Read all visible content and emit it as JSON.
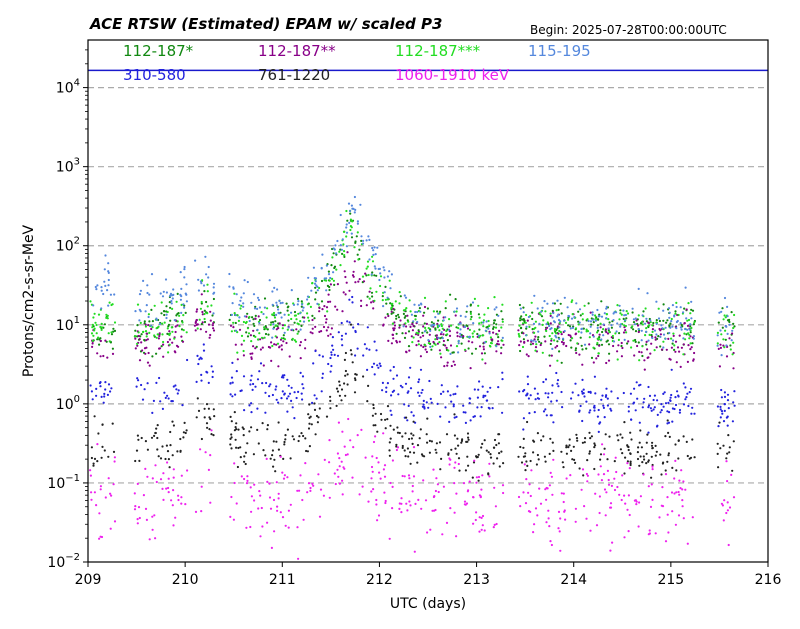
{
  "chart_data": {
    "type": "scatter",
    "title": "ACE RTSW (Estimated) EPAM w/ scaled P3",
    "begin_label": "Begin: 2025-07-28T00:00:00UTC",
    "xlabel": "UTC (days)",
    "ylabel": "Protons/cm2-s-sr-MeV",
    "xlim": [
      209,
      216
    ],
    "ylim": [
      0.01,
      40000
    ],
    "yscale": "log",
    "x_ticks": [
      "209",
      "210",
      "211",
      "212",
      "213",
      "214",
      "215",
      "216"
    ],
    "y_ticks": [
      {
        "base": "10",
        "exp": "−2",
        "value": 0.01
      },
      {
        "base": "10",
        "exp": "−1",
        "value": 0.1
      },
      {
        "base": "10",
        "exp": "0",
        "value": 1
      },
      {
        "base": "10",
        "exp": "1",
        "value": 10
      },
      {
        "base": "10",
        "exp": "2",
        "value": 100
      },
      {
        "base": "10",
        "exp": "3",
        "value": 1000
      },
      {
        "base": "10",
        "exp": "4",
        "value": 10000
      }
    ],
    "grid": "horizontal dashed at each decade",
    "reference_line": {
      "value": 16500,
      "color": "#1a1acc"
    },
    "data_gaps": [
      [
        209.28,
        209.48
      ],
      [
        210.02,
        210.1
      ],
      [
        210.3,
        210.45
      ],
      [
        213.28,
        213.43
      ],
      [
        215.25,
        215.48
      ]
    ],
    "data_end": 215.66,
    "series": [
      {
        "name": "112-187*",
        "color": "#118811",
        "baseline": 9.5,
        "points": [
          [
            209.05,
            10.2
          ],
          [
            209.15,
            9.1
          ],
          [
            209.6,
            8.7
          ],
          [
            209.85,
            10.5
          ],
          [
            210.2,
            18
          ],
          [
            210.6,
            9.2
          ],
          [
            210.9,
            8.8
          ],
          [
            211.2,
            12
          ],
          [
            211.5,
            40
          ],
          [
            211.65,
            120
          ],
          [
            211.72,
            150
          ],
          [
            211.85,
            60
          ],
          [
            212.0,
            25
          ],
          [
            212.2,
            13
          ],
          [
            212.6,
            9
          ],
          [
            213.0,
            8.8
          ],
          [
            213.7,
            9.5
          ],
          [
            214.2,
            9.3
          ],
          [
            214.7,
            8.9
          ],
          [
            215.1,
            10.5
          ],
          [
            215.55,
            8.5
          ]
        ]
      },
      {
        "name": "112-187**",
        "color": "#880088",
        "baseline": 6,
        "points": [
          [
            209.05,
            6.2
          ],
          [
            209.15,
            5.5
          ],
          [
            209.6,
            5.4
          ],
          [
            209.85,
            6.1
          ],
          [
            210.2,
            12
          ],
          [
            210.6,
            5.8
          ],
          [
            210.9,
            5.5
          ],
          [
            211.2,
            7
          ],
          [
            211.5,
            15
          ],
          [
            211.7,
            45
          ],
          [
            211.85,
            25
          ],
          [
            212.0,
            12
          ],
          [
            212.2,
            8
          ],
          [
            212.6,
            6
          ],
          [
            213.0,
            5.6
          ],
          [
            213.7,
            6.5
          ],
          [
            214.2,
            6.1
          ],
          [
            214.7,
            5.8
          ],
          [
            215.1,
            6.3
          ],
          [
            215.55,
            5.5
          ]
        ]
      },
      {
        "name": "112-187***",
        "color": "#22dd22",
        "baseline": 9.5,
        "points": [
          [
            209.05,
            9.8
          ],
          [
            209.15,
            10.5
          ],
          [
            209.6,
            9.5
          ],
          [
            209.85,
            9.9
          ],
          [
            210.2,
            20
          ],
          [
            210.6,
            9.4
          ],
          [
            210.9,
            9.1
          ],
          [
            211.2,
            11
          ],
          [
            211.5,
            35
          ],
          [
            211.68,
            170
          ],
          [
            211.75,
            130
          ],
          [
            211.9,
            50
          ],
          [
            212.05,
            20
          ],
          [
            212.3,
            11
          ],
          [
            212.6,
            8.8
          ],
          [
            213.0,
            9.2
          ],
          [
            213.7,
            9.6
          ],
          [
            214.2,
            9.0
          ],
          [
            214.7,
            9.3
          ],
          [
            215.1,
            11
          ],
          [
            215.55,
            8.7
          ]
        ]
      },
      {
        "name": "115-195",
        "color": "#5588dd",
        "baseline": 18,
        "points": [
          [
            209.05,
            28
          ],
          [
            209.15,
            32
          ],
          [
            209.6,
            20
          ],
          [
            209.85,
            18
          ],
          [
            210.2,
            40
          ],
          [
            210.6,
            16
          ],
          [
            210.9,
            15
          ],
          [
            211.2,
            17
          ],
          [
            211.5,
            60
          ],
          [
            211.7,
            300
          ],
          [
            211.8,
            200
          ],
          [
            212.0,
            50
          ],
          [
            212.2,
            18
          ],
          [
            212.6,
            10
          ],
          [
            213.0,
            10
          ],
          [
            213.7,
            11
          ],
          [
            214.2,
            10.5
          ],
          [
            214.7,
            10
          ],
          [
            215.1,
            12
          ],
          [
            215.55,
            9
          ]
        ]
      },
      {
        "name": "310-580",
        "color": "#2222dd",
        "baseline": 1.3,
        "points": [
          [
            209.05,
            1.9
          ],
          [
            209.15,
            1.7
          ],
          [
            209.6,
            1.4
          ],
          [
            209.85,
            1.3
          ],
          [
            210.2,
            3.5
          ],
          [
            210.6,
            1.4
          ],
          [
            210.9,
            1.3
          ],
          [
            211.2,
            1.5
          ],
          [
            211.5,
            4
          ],
          [
            211.7,
            15
          ],
          [
            211.8,
            8
          ],
          [
            212.0,
            2.5
          ],
          [
            212.2,
            1.3
          ],
          [
            212.6,
            1.1
          ],
          [
            213.0,
            1.1
          ],
          [
            213.7,
            1.15
          ],
          [
            214.2,
            1.1
          ],
          [
            214.7,
            1.05
          ],
          [
            215.1,
            1.1
          ],
          [
            215.55,
            1.0
          ]
        ]
      },
      {
        "name": "761-1220",
        "color": "#222222",
        "baseline": 0.3,
        "points": [
          [
            209.05,
            0.33
          ],
          [
            209.15,
            0.3
          ],
          [
            209.6,
            0.3
          ],
          [
            209.85,
            0.32
          ],
          [
            210.2,
            0.8
          ],
          [
            210.6,
            0.29
          ],
          [
            210.9,
            0.28
          ],
          [
            211.2,
            0.35
          ],
          [
            211.5,
            1.2
          ],
          [
            211.7,
            4
          ],
          [
            211.8,
            2
          ],
          [
            212.0,
            0.6
          ],
          [
            212.2,
            0.35
          ],
          [
            212.6,
            0.28
          ],
          [
            213.0,
            0.25
          ],
          [
            213.7,
            0.27
          ],
          [
            214.2,
            0.26
          ],
          [
            214.7,
            0.25
          ],
          [
            215.1,
            0.26
          ],
          [
            215.55,
            0.24
          ]
        ]
      },
      {
        "name": "1060-1910 keV",
        "color": "#ee22ee",
        "baseline": 0.065,
        "points": [
          [
            209.05,
            0.06
          ],
          [
            209.15,
            0.055
          ],
          [
            209.6,
            0.065
          ],
          [
            209.85,
            0.07
          ],
          [
            210.2,
            0.12
          ],
          [
            210.6,
            0.065
          ],
          [
            210.9,
            0.062
          ],
          [
            211.2,
            0.07
          ],
          [
            211.5,
            0.12
          ],
          [
            211.7,
            0.3
          ],
          [
            211.8,
            0.2
          ],
          [
            212.0,
            0.1
          ],
          [
            212.2,
            0.07
          ],
          [
            212.6,
            0.06
          ],
          [
            213.0,
            0.058
          ],
          [
            213.7,
            0.062
          ],
          [
            214.2,
            0.06
          ],
          [
            214.7,
            0.058
          ],
          [
            215.1,
            0.06
          ],
          [
            215.55,
            0.055
          ]
        ]
      }
    ]
  }
}
